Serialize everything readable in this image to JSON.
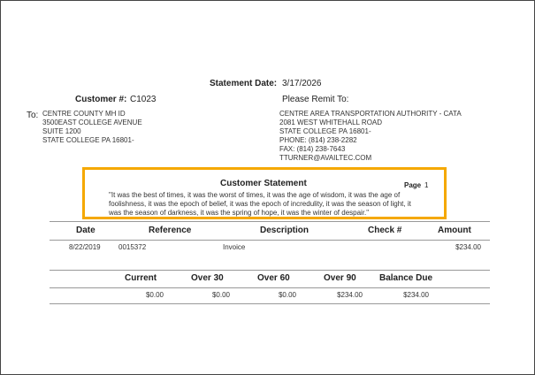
{
  "header": {
    "statement_date_label": "Statement Date:",
    "statement_date": "3/17/2026",
    "customer_label": "Customer #:",
    "customer_number": "C1023",
    "remit_label": "Please Remit To:"
  },
  "to": {
    "label": "To:",
    "lines": [
      "CENTRE COUNTY MH ID",
      "3500EAST COLLEGE AVENUE",
      "SUITE 1200",
      "STATE COLLEGE PA  16801-"
    ]
  },
  "remit": {
    "lines": [
      "CENTRE AREA TRANSPORTATION AUTHORITY - CATA",
      "2081 WEST WHITEHALL ROAD",
      "STATE COLLEGE PA  16801-",
      "PHONE: (814) 238-2282",
      "FAX: (814) 238-7643",
      "TTURNER@AVAILTEC.COM"
    ]
  },
  "statement": {
    "title": "Customer Statement",
    "page_label": "Page",
    "page": "1",
    "accent_color": "#f5a800",
    "quote_lines": [
      "\"It was the best of times, it was the worst of times, it was the age of wisdom, it was the age of",
      "foolishness, it was the epoch of belief, it was the epoch of incredulity, it was the season of light, it",
      "was the season of darkness, it was the spring of hope, it was the winter of despair.\""
    ]
  },
  "table": {
    "headers": [
      "Date",
      "Reference",
      "Description",
      "Check #",
      "Amount"
    ],
    "rows": [
      {
        "date": "8/22/2019",
        "reference": "0015372",
        "description": "Invoice",
        "check": "",
        "amount": "$234.00"
      }
    ]
  },
  "aging": {
    "headers": [
      "Current",
      "Over 30",
      "Over 60",
      "Over 90",
      "Balance Due"
    ],
    "values": [
      "$0.00",
      "$0.00",
      "$0.00",
      "$234.00",
      "$234.00"
    ]
  }
}
